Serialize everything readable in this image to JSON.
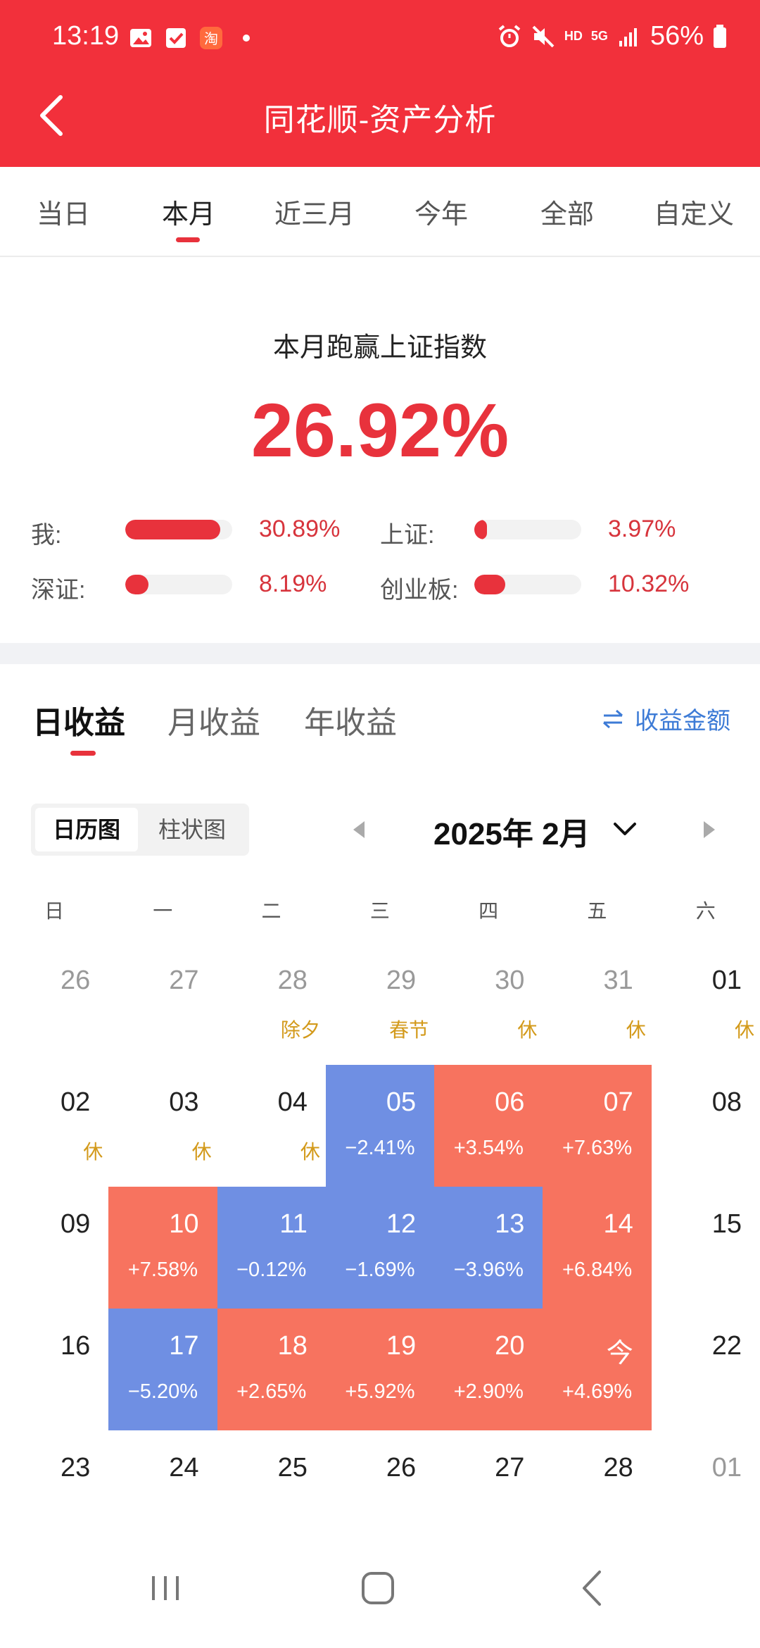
{
  "status_bar": {
    "time": "13:19",
    "network": "5G",
    "hd": "HD",
    "battery": "56%"
  },
  "header": {
    "title": "同花顺-资产分析"
  },
  "period_tabs": [
    "当日",
    "本月",
    "近三月",
    "今年",
    "全部",
    "自定义"
  ],
  "summary": {
    "title": "本月跑赢上证指数",
    "value": "26.92%",
    "comparisons": [
      {
        "label": "我:",
        "value": "30.89%",
        "fill": 0.89
      },
      {
        "label": "上证:",
        "value": "3.97%",
        "fill": 0.1
      },
      {
        "label": "深证:",
        "value": "8.19%",
        "fill": 0.22
      },
      {
        "label": "创业板:",
        "value": "10.32%",
        "fill": 0.29
      }
    ]
  },
  "earnings_tabs": [
    "日收益",
    "月收益",
    "年收益"
  ],
  "amount_toggle": "收益金额",
  "view_switch": [
    "日历图",
    "柱状图"
  ],
  "month_label": "2025年 2月",
  "weekdays": [
    "日",
    "一",
    "二",
    "三",
    "四",
    "五",
    "六"
  ],
  "calendar": {
    "rows": [
      [
        {
          "day": "26",
          "type": "other"
        },
        {
          "day": "27",
          "type": "other"
        },
        {
          "day": "28",
          "type": "other",
          "note": "除夕"
        },
        {
          "day": "29",
          "type": "other",
          "note": "春节"
        },
        {
          "day": "30",
          "type": "other",
          "note": "休"
        },
        {
          "day": "31",
          "type": "other",
          "note": "休"
        },
        {
          "day": "01",
          "type": "plain",
          "note": "休"
        }
      ],
      [
        {
          "day": "02",
          "type": "plain",
          "note": "休"
        },
        {
          "day": "03",
          "type": "plain",
          "note": "休"
        },
        {
          "day": "04",
          "type": "plain",
          "note": "休"
        },
        {
          "day": "05",
          "type": "down",
          "pct": "−2.41%"
        },
        {
          "day": "06",
          "type": "up",
          "pct": "+3.54%"
        },
        {
          "day": "07",
          "type": "up",
          "pct": "+7.63%"
        },
        {
          "day": "08",
          "type": "plain"
        }
      ],
      [
        {
          "day": "09",
          "type": "plain"
        },
        {
          "day": "10",
          "type": "up",
          "pct": "+7.58%"
        },
        {
          "day": "11",
          "type": "down",
          "pct": "−0.12%"
        },
        {
          "day": "12",
          "type": "down",
          "pct": "−1.69%"
        },
        {
          "day": "13",
          "type": "down",
          "pct": "−3.96%"
        },
        {
          "day": "14",
          "type": "up",
          "pct": "+6.84%"
        },
        {
          "day": "15",
          "type": "plain"
        }
      ],
      [
        {
          "day": "16",
          "type": "plain"
        },
        {
          "day": "17",
          "type": "down",
          "pct": "−5.20%"
        },
        {
          "day": "18",
          "type": "up",
          "pct": "+2.65%"
        },
        {
          "day": "19",
          "type": "up",
          "pct": "+5.92%"
        },
        {
          "day": "20",
          "type": "up",
          "pct": "+2.90%"
        },
        {
          "day": "今",
          "type": "up",
          "pct": "+4.69%"
        },
        {
          "day": "22",
          "type": "plain"
        }
      ],
      [
        {
          "day": "23",
          "type": "plain"
        },
        {
          "day": "24",
          "type": "plain"
        },
        {
          "day": "25",
          "type": "plain"
        },
        {
          "day": "26",
          "type": "plain"
        },
        {
          "day": "27",
          "type": "plain"
        },
        {
          "day": "28",
          "type": "plain"
        },
        {
          "day": "01",
          "type": "other"
        }
      ]
    ]
  },
  "colors": {
    "brand_red": "#f2303b",
    "gain": "#f7735f",
    "loss": "#6f8fe3",
    "holiday": "#d39a1b",
    "link": "#3d7bd6"
  }
}
